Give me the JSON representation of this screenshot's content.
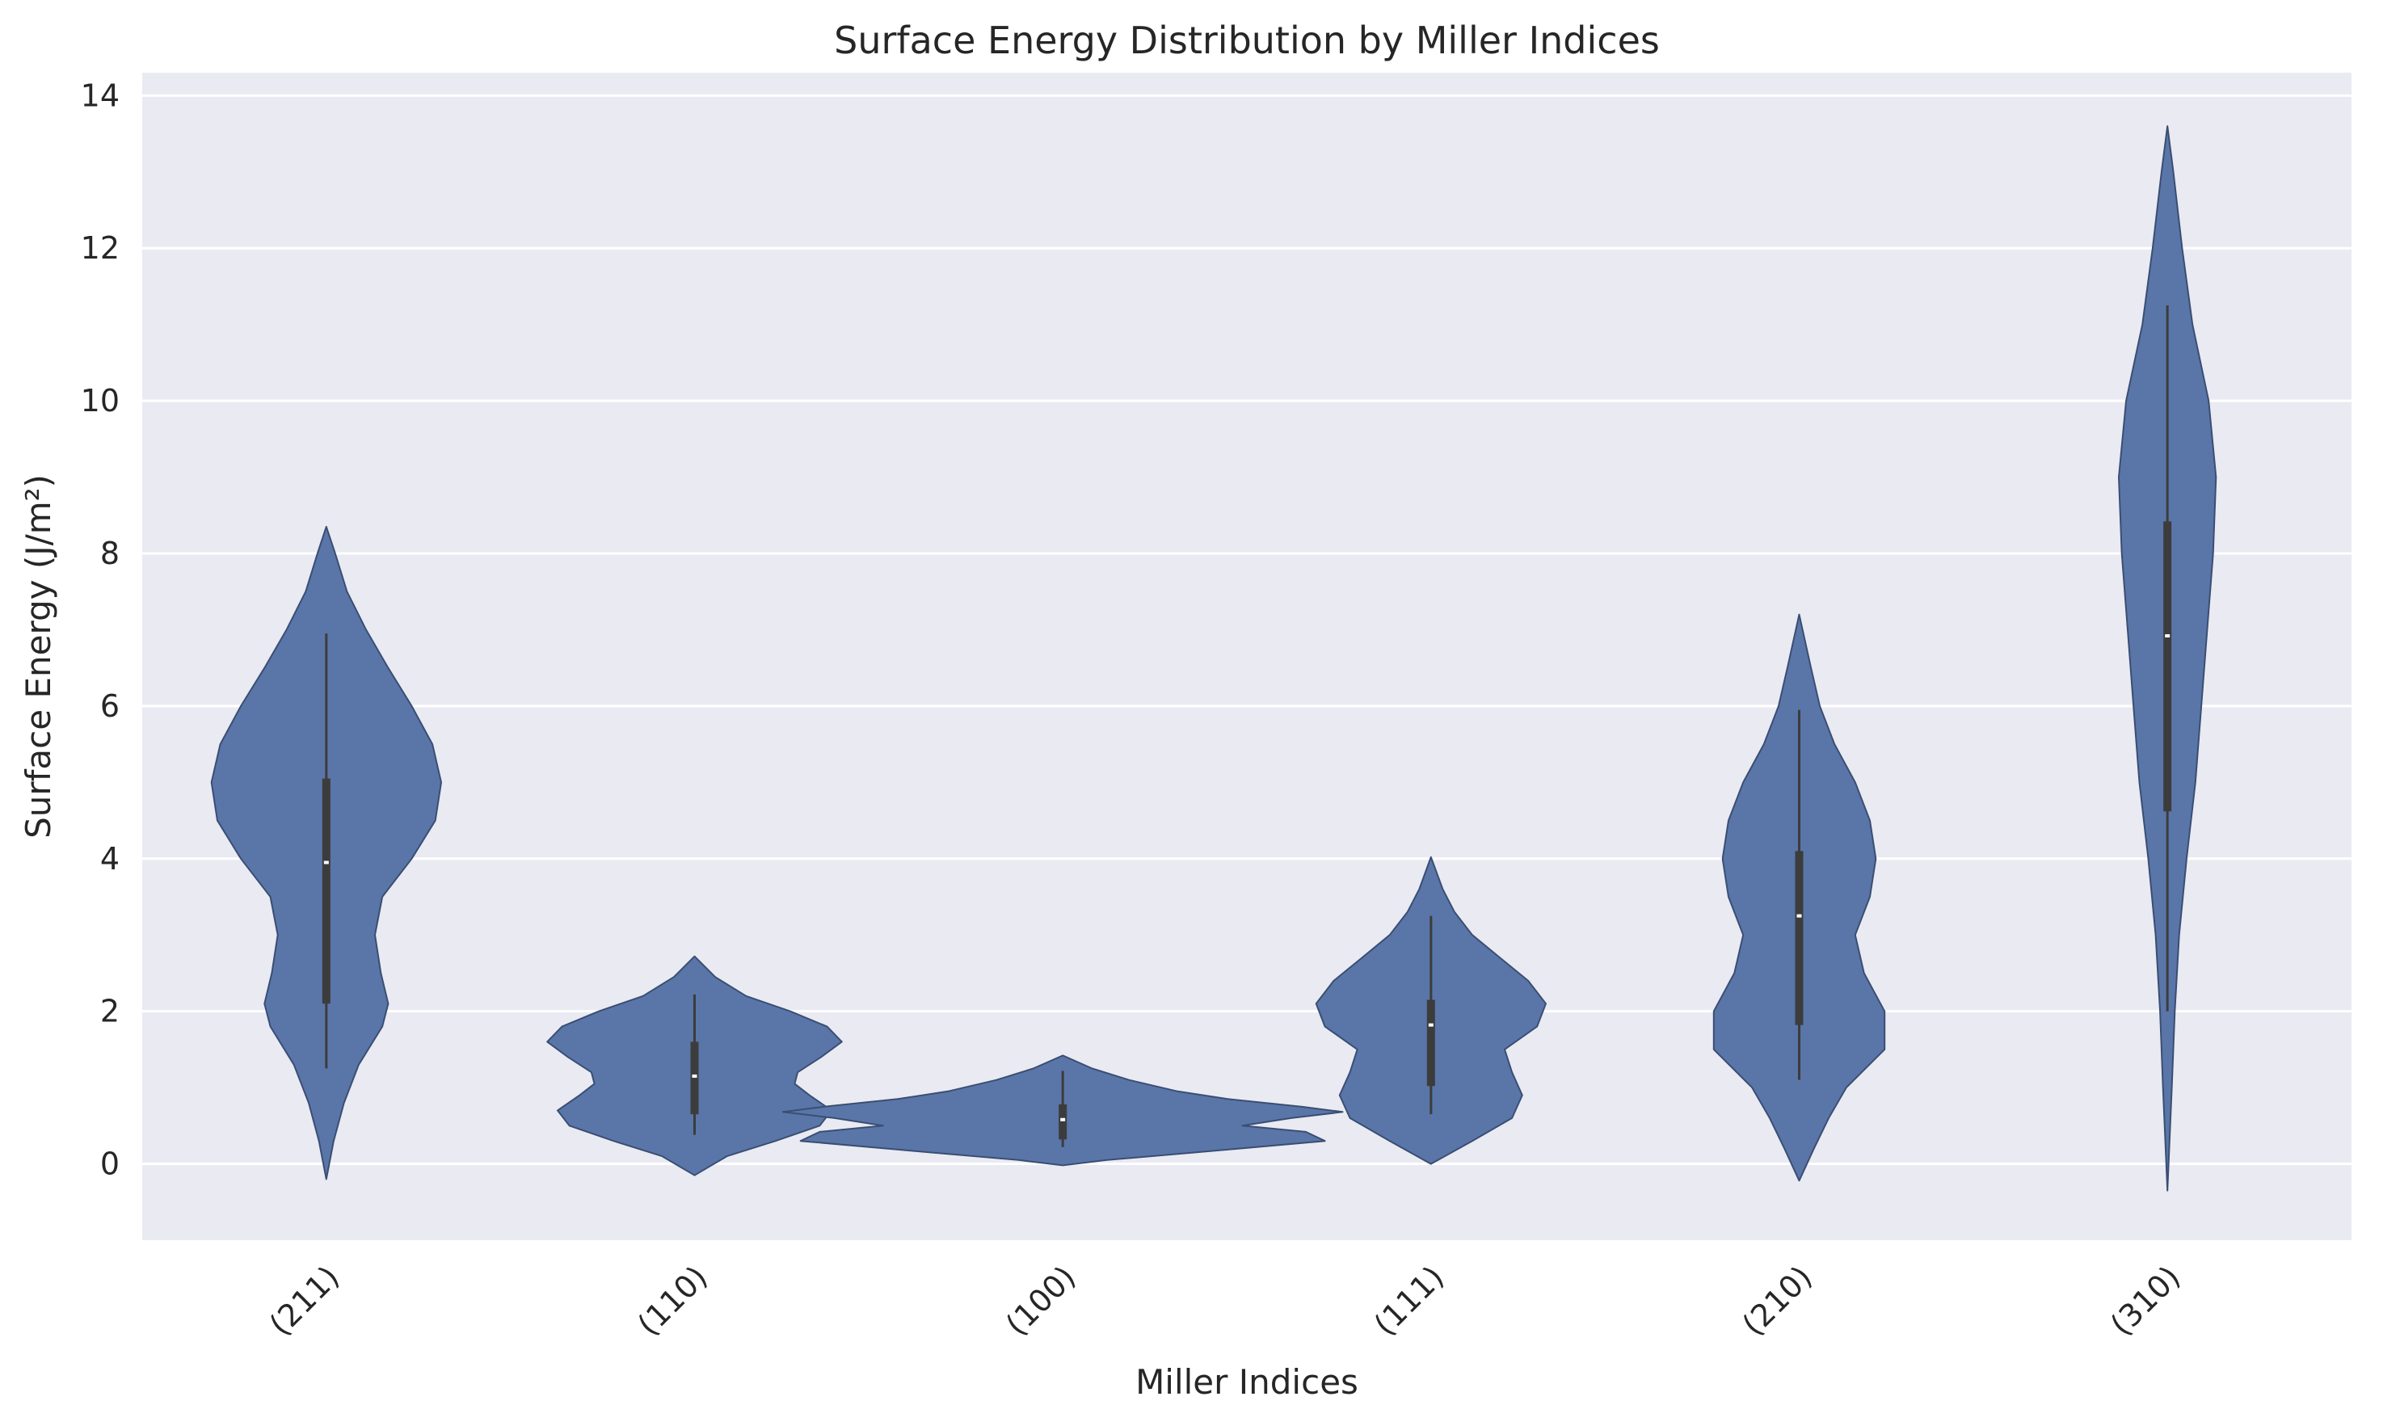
{
  "chart_data": {
    "type": "violin",
    "title": "Surface Energy Distribution by Miller Indices",
    "xlabel": "Miller Indices",
    "ylabel": "Surface Energy (J/m²)",
    "categories": [
      "(211)",
      "(110)",
      "(100)",
      "(111)",
      "(210)",
      "(310)"
    ],
    "ylim": [
      -1.0,
      14.3
    ],
    "yticks": [
      0,
      2,
      4,
      6,
      8,
      10,
      12,
      14
    ],
    "grid": true,
    "violins": [
      {
        "label": "(211)",
        "min_extent": -0.2,
        "max_extent": 8.35,
        "q1": 2.1,
        "median": 3.95,
        "q3": 5.05,
        "whisker_low": 1.25,
        "whisker_high": 6.95,
        "profile": [
          [
            -0.2,
            0
          ],
          [
            0.3,
            0.05
          ],
          [
            0.8,
            0.12
          ],
          [
            1.3,
            0.22
          ],
          [
            1.8,
            0.38
          ],
          [
            2.1,
            0.42
          ],
          [
            2.5,
            0.37
          ],
          [
            3.0,
            0.33
          ],
          [
            3.5,
            0.38
          ],
          [
            4.0,
            0.58
          ],
          [
            4.5,
            0.74
          ],
          [
            5.0,
            0.78
          ],
          [
            5.5,
            0.72
          ],
          [
            6.0,
            0.58
          ],
          [
            6.5,
            0.42
          ],
          [
            7.0,
            0.27
          ],
          [
            7.5,
            0.14
          ],
          [
            8.0,
            0.06
          ],
          [
            8.35,
            0
          ]
        ]
      },
      {
        "label": "(110)",
        "min_extent": -0.15,
        "max_extent": 2.72,
        "q1": 0.65,
        "median": 1.15,
        "q3": 1.6,
        "whisker_low": 0.38,
        "whisker_high": 2.22,
        "profile": [
          [
            -0.15,
            0
          ],
          [
            0.1,
            0.22
          ],
          [
            0.3,
            0.55
          ],
          [
            0.5,
            0.85
          ],
          [
            0.7,
            0.93
          ],
          [
            0.9,
            0.78
          ],
          [
            1.05,
            0.68
          ],
          [
            1.2,
            0.7
          ],
          [
            1.4,
            0.86
          ],
          [
            1.6,
            1.0
          ],
          [
            1.8,
            0.9
          ],
          [
            2.0,
            0.65
          ],
          [
            2.2,
            0.35
          ],
          [
            2.45,
            0.14
          ],
          [
            2.72,
            0
          ]
        ]
      },
      {
        "label": "(100)",
        "min_extent": -0.02,
        "max_extent": 1.42,
        "q1": 0.32,
        "median": 0.58,
        "q3": 0.78,
        "whisker_low": 0.22,
        "whisker_high": 1.22,
        "profile": [
          [
            -0.02,
            0
          ],
          [
            0.05,
            0.3
          ],
          [
            0.15,
            0.9
          ],
          [
            0.3,
            1.78
          ],
          [
            0.42,
            1.65
          ],
          [
            0.5,
            1.22
          ],
          [
            0.6,
            1.55
          ],
          [
            0.68,
            1.9
          ],
          [
            0.75,
            1.62
          ],
          [
            0.85,
            1.12
          ],
          [
            0.95,
            0.78
          ],
          [
            1.1,
            0.45
          ],
          [
            1.25,
            0.2
          ],
          [
            1.42,
            0
          ]
        ]
      },
      {
        "label": "(111)",
        "min_extent": 0.0,
        "max_extent": 4.02,
        "q1": 1.02,
        "median": 1.82,
        "q3": 2.15,
        "whisker_low": 0.65,
        "whisker_high": 3.25,
        "profile": [
          [
            0.0,
            0
          ],
          [
            0.3,
            0.28
          ],
          [
            0.6,
            0.55
          ],
          [
            0.9,
            0.62
          ],
          [
            1.2,
            0.55
          ],
          [
            1.5,
            0.5
          ],
          [
            1.8,
            0.72
          ],
          [
            2.1,
            0.78
          ],
          [
            2.4,
            0.66
          ],
          [
            2.7,
            0.47
          ],
          [
            3.0,
            0.28
          ],
          [
            3.3,
            0.16
          ],
          [
            3.6,
            0.08
          ],
          [
            4.02,
            0
          ]
        ]
      },
      {
        "label": "(210)",
        "min_extent": -0.22,
        "max_extent": 7.2,
        "q1": 1.82,
        "median": 3.25,
        "q3": 4.1,
        "whisker_low": 1.1,
        "whisker_high": 5.95,
        "profile": [
          [
            -0.22,
            0
          ],
          [
            0.2,
            0.1
          ],
          [
            0.6,
            0.2
          ],
          [
            1.0,
            0.32
          ],
          [
            1.5,
            0.58
          ],
          [
            2.0,
            0.58
          ],
          [
            2.5,
            0.44
          ],
          [
            3.0,
            0.38
          ],
          [
            3.5,
            0.48
          ],
          [
            4.0,
            0.52
          ],
          [
            4.5,
            0.48
          ],
          [
            5.0,
            0.38
          ],
          [
            5.5,
            0.24
          ],
          [
            6.0,
            0.14
          ],
          [
            6.5,
            0.08
          ],
          [
            7.2,
            0
          ]
        ]
      },
      {
        "label": "(310)",
        "min_extent": -0.35,
        "max_extent": 13.6,
        "q1": 4.62,
        "median": 6.92,
        "q3": 8.42,
        "whisker_low": 2.0,
        "whisker_high": 11.25,
        "profile": [
          [
            -0.35,
            0
          ],
          [
            1.0,
            0.03
          ],
          [
            2.0,
            0.05
          ],
          [
            3.0,
            0.08
          ],
          [
            4.0,
            0.13
          ],
          [
            5.0,
            0.19
          ],
          [
            6.0,
            0.23
          ],
          [
            7.0,
            0.27
          ],
          [
            8.0,
            0.31
          ],
          [
            9.0,
            0.33
          ],
          [
            10.0,
            0.28
          ],
          [
            11.0,
            0.17
          ],
          [
            12.0,
            0.1
          ],
          [
            13.0,
            0.04
          ],
          [
            13.6,
            0
          ]
        ]
      }
    ],
    "colors": {
      "violin_fill": "#5a76a8",
      "violin_edge": "#3a4e73",
      "box": "#3c3c3c",
      "median": "#ffffff",
      "plot_bg": "#eaeaf2",
      "grid": "#ffffff"
    }
  }
}
